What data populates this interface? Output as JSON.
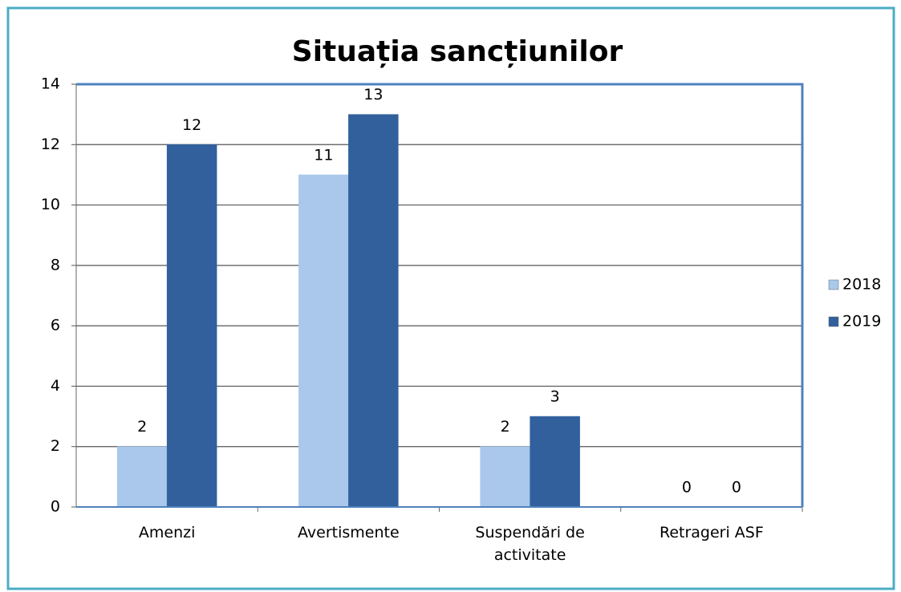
{
  "chart_data": {
    "type": "bar",
    "title": "Situația sancțiunilor",
    "categories": [
      "Amenzi",
      "Avertismente",
      "Suspendări de activitate",
      "Retrageri ASF"
    ],
    "series": [
      {
        "name": "2018",
        "color": "#a9c8ec",
        "values": [
          2,
          11,
          2,
          0
        ]
      },
      {
        "name": "2019",
        "color": "#31609d",
        "values": [
          12,
          13,
          3,
          0
        ]
      }
    ],
    "ylim": [
      0,
      14
    ],
    "yticks": [
      0,
      2,
      4,
      6,
      8,
      10,
      12,
      14
    ],
    "grid": true,
    "legend": "right"
  }
}
